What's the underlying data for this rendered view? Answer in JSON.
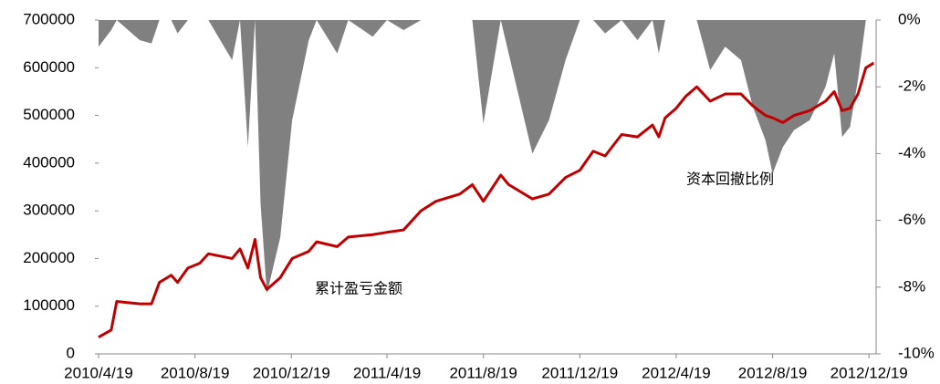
{
  "chart_data": {
    "type": "line",
    "x": [
      "2010/4/19",
      "2010/5/5",
      "2010/5/12",
      "2010/6/10",
      "2010/6/25",
      "2010/7/5",
      "2010/7/20",
      "2010/7/28",
      "2010/8/10",
      "2010/8/25",
      "2010/9/5",
      "2010/9/20",
      "2010/10/5",
      "2010/10/15",
      "2010/10/25",
      "2010/11/3",
      "2010/11/10",
      "2010/11/18",
      "2010/12/5",
      "2010/12/20",
      "2011/1/10",
      "2011/1/20",
      "2011/2/15",
      "2011/3/1",
      "2011/4/1",
      "2011/4/19",
      "2011/5/10",
      "2011/6/1",
      "2011/6/20",
      "2011/7/20",
      "2011/8/5",
      "2011/8/19",
      "2011/9/10",
      "2011/9/20",
      "2011/10/20",
      "2011/11/10",
      "2011/12/1",
      "2011/12/19",
      "2012/1/5",
      "2012/1/20",
      "2012/2/10",
      "2012/3/1",
      "2012/3/20",
      "2012/3/28",
      "2012/4/5",
      "2012/4/19",
      "2012/5/1",
      "2012/5/15",
      "2012/6/1",
      "2012/6/20",
      "2012/7/10",
      "2012/7/25",
      "2012/8/10",
      "2012/8/19",
      "2012/9/1",
      "2012/9/15",
      "2012/10/5",
      "2012/10/25",
      "2012/11/5",
      "2012/11/15",
      "2012/11/25",
      "2012/12/5",
      "2012/12/15",
      "2012/12/25"
    ],
    "series": [
      {
        "name": "累计盈亏金额",
        "type": "line",
        "color": "#c00000",
        "values": [
          35000,
          50000,
          110000,
          105000,
          105000,
          150000,
          165000,
          150000,
          180000,
          190000,
          210000,
          205000,
          200000,
          220000,
          180000,
          240000,
          160000,
          135000,
          160000,
          200000,
          215000,
          235000,
          225000,
          245000,
          250000,
          255000,
          260000,
          300000,
          320000,
          335000,
          355000,
          320000,
          375000,
          355000,
          325000,
          335000,
          370000,
          385000,
          425000,
          415000,
          460000,
          455000,
          480000,
          455000,
          495000,
          515000,
          540000,
          560000,
          530000,
          545000,
          545000,
          520000,
          500000,
          495000,
          485000,
          500000,
          510000,
          530000,
          550000,
          510000,
          515000,
          545000,
          600000,
          610000
        ]
      },
      {
        "name": "资本回撤比例",
        "type": "area",
        "axis": "y2",
        "color": "#808080",
        "values": [
          -0.8,
          -0.3,
          0,
          -0.6,
          -0.7,
          0,
          0,
          -0.4,
          0,
          0,
          0,
          -0.6,
          -1.2,
          0,
          -3.8,
          0,
          -5.5,
          -8.2,
          -6.5,
          -3.0,
          -0.6,
          0,
          -1.0,
          0,
          -0.5,
          0,
          -0.3,
          0,
          0,
          0,
          0,
          -3.1,
          0,
          -1.0,
          -4.0,
          -3.0,
          -1.2,
          0,
          0,
          -0.4,
          0,
          -0.6,
          0,
          -1.0,
          0,
          0,
          0,
          0,
          -1.5,
          -0.8,
          -1.2,
          -2.6,
          -3.6,
          -4.6,
          -3.8,
          -3.3,
          -3.0,
          -2.0,
          -1.0,
          -3.5,
          -3.2,
          -1.8,
          0,
          0
        ]
      }
    ],
    "annotations": [
      "累计盈亏金额",
      "资本回撤比例"
    ],
    "xlim": [
      "2010/4/19",
      "2012/12/28"
    ],
    "xticks": [
      "2010/4/19",
      "2010/8/19",
      "2010/12/19",
      "2011/4/19",
      "2011/8/19",
      "2011/12/19",
      "2012/4/19",
      "2012/8/19",
      "2012/12/19"
    ],
    "ylim": [
      0,
      700000
    ],
    "yticks": [
      0,
      100000,
      200000,
      300000,
      400000,
      500000,
      600000,
      700000
    ],
    "y2lim": [
      -10,
      0
    ],
    "y2ticks": [
      {
        "value": 0,
        "label": "0%"
      },
      {
        "value": -2,
        "label": "-2%"
      },
      {
        "value": -4,
        "label": "-4%"
      },
      {
        "value": -6,
        "label": "-6%"
      },
      {
        "value": -8,
        "label": "-8%"
      },
      {
        "value": -10,
        "label": "-10%"
      }
    ]
  }
}
